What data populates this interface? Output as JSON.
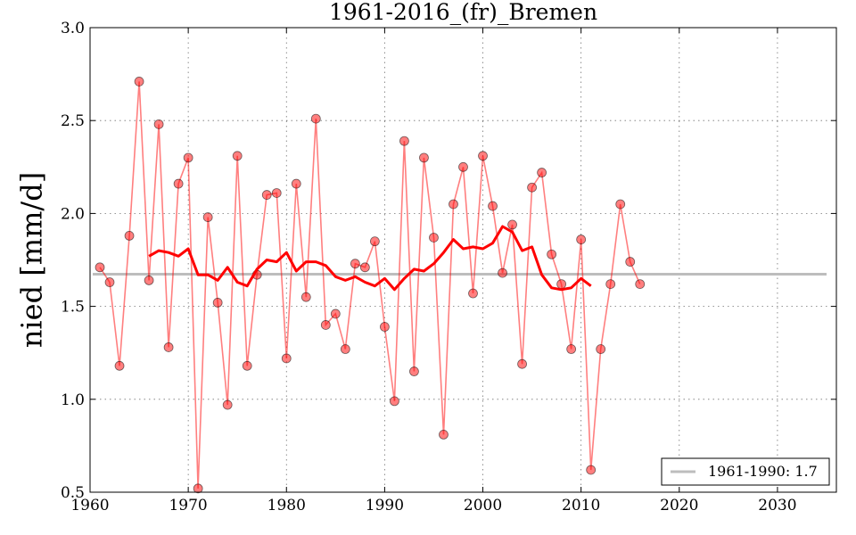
{
  "chart_data": {
    "type": "line",
    "title": "1961-2016_(fr)_Bremen",
    "xlabel": "",
    "ylabel": "nied [mm/d]",
    "xlim": [
      1960,
      2036
    ],
    "ylim": [
      0.5,
      3.0
    ],
    "xticks": [
      1960,
      1970,
      1980,
      1990,
      2000,
      2010,
      2020,
      2030
    ],
    "yticks": [
      0.5,
      1.0,
      1.5,
      2.0,
      2.5,
      3.0
    ],
    "xtick_labels": [
      "1960",
      "1970",
      "1980",
      "1990",
      "2000",
      "2010",
      "2020",
      "2030"
    ],
    "ytick_labels": [
      "0.5",
      "1.0",
      "1.5",
      "2.0",
      "2.5",
      "3.0"
    ],
    "grid": true,
    "legend_position": "bottom-right",
    "colors": {
      "annual": "#ff0000",
      "smoothed": "#ff0000",
      "reference": "#bdbdbd"
    },
    "series": [
      {
        "kind": "annual",
        "x": [
          1961,
          1962,
          1963,
          1964,
          1965,
          1966,
          1967,
          1968,
          1969,
          1970,
          1971,
          1972,
          1973,
          1974,
          1975,
          1976,
          1977,
          1978,
          1979,
          1980,
          1981,
          1982,
          1983,
          1984,
          1985,
          1986,
          1987,
          1988,
          1989,
          1990,
          1991,
          1992,
          1993,
          1994,
          1995,
          1996,
          1997,
          1998,
          1999,
          2000,
          2001,
          2002,
          2003,
          2004,
          2005,
          2006,
          2007,
          2008,
          2009,
          2010,
          2011,
          2012,
          2013,
          2014,
          2015,
          2016
        ],
        "values": [
          1.71,
          1.63,
          1.18,
          1.88,
          2.71,
          1.64,
          2.48,
          1.28,
          2.16,
          2.3,
          0.52,
          1.98,
          1.52,
          0.97,
          2.31,
          1.18,
          1.67,
          2.1,
          2.11,
          1.22,
          2.16,
          1.55,
          2.51,
          1.4,
          1.46,
          1.27,
          1.73,
          1.71,
          1.85,
          1.39,
          0.99,
          2.39,
          1.15,
          2.3,
          1.87,
          0.81,
          2.05,
          2.25,
          1.57,
          2.31,
          2.04,
          1.68,
          1.94,
          1.19,
          2.14,
          2.22,
          1.78,
          1.62,
          1.27,
          1.86,
          0.62,
          1.27,
          1.62,
          2.05,
          1.74,
          1.62
        ]
      },
      {
        "kind": "smoothed",
        "x": [
          1966,
          1967,
          1968,
          1969,
          1970,
          1971,
          1972,
          1973,
          1974,
          1975,
          1976,
          1977,
          1978,
          1979,
          1980,
          1981,
          1982,
          1983,
          1984,
          1985,
          1986,
          1987,
          1988,
          1989,
          1990,
          1991,
          1992,
          1993,
          1994,
          1995,
          1996,
          1997,
          1998,
          1999,
          2000,
          2001,
          2002,
          2003,
          2004,
          2005,
          2006,
          2007,
          2008,
          2009,
          2010,
          2011
        ],
        "values": [
          1.77,
          1.8,
          1.79,
          1.77,
          1.81,
          1.67,
          1.67,
          1.64,
          1.71,
          1.63,
          1.61,
          1.7,
          1.75,
          1.74,
          1.79,
          1.69,
          1.74,
          1.74,
          1.72,
          1.66,
          1.64,
          1.66,
          1.63,
          1.61,
          1.65,
          1.59,
          1.65,
          1.7,
          1.69,
          1.73,
          1.79,
          1.86,
          1.81,
          1.82,
          1.81,
          1.84,
          1.93,
          1.9,
          1.8,
          1.82,
          1.67,
          1.6,
          1.59,
          1.6,
          1.65,
          1.61
        ]
      },
      {
        "kind": "reference",
        "name": "1961-1990: 1.7",
        "value": 1.673
      }
    ]
  }
}
